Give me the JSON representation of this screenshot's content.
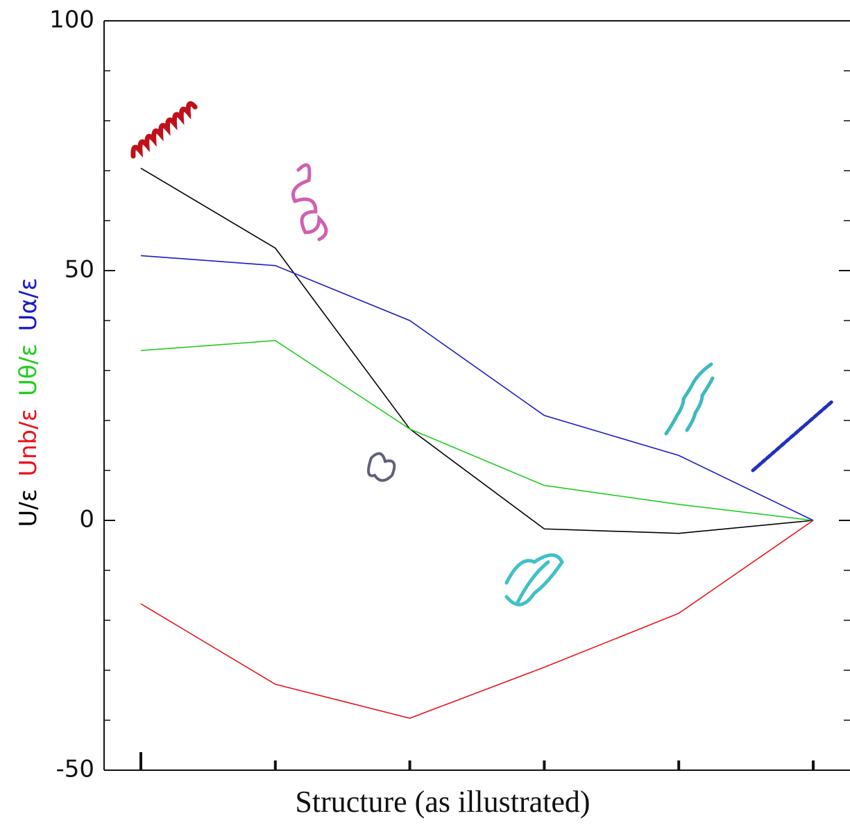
{
  "chart_data": {
    "type": "line",
    "x_label": "Structure (as illustrated)",
    "categories": [
      null,
      null,
      null,
      null,
      null,
      null
    ],
    "series": [
      {
        "name": "U/ε",
        "color": "#000000",
        "values": [
          70.5,
          54.5,
          18.3,
          -1.7,
          -2.6,
          0
        ]
      },
      {
        "name": "Unb/ε",
        "color": "#e8141e",
        "values": [
          -16.7,
          -32.8,
          -39.6,
          -29.4,
          -18.6,
          0
        ]
      },
      {
        "name": "Uθ/ε",
        "color": "#22cc22",
        "values": [
          34,
          36,
          18.3,
          7,
          3.2,
          0
        ]
      },
      {
        "name": "Uα/ε",
        "color": "#1a1acc",
        "values": [
          53,
          51,
          40,
          21,
          13,
          0
        ]
      }
    ],
    "ylim": [
      -50,
      100
    ],
    "yticks": [
      -50,
      0,
      50,
      100
    ],
    "minor_yticks": [
      -40,
      -30,
      -20,
      -10,
      10,
      20,
      30,
      40,
      60,
      70,
      80,
      90
    ]
  }
}
